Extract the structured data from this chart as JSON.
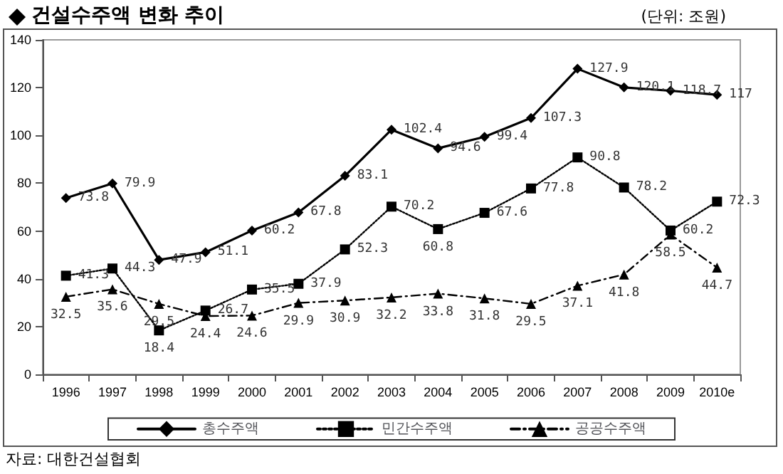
{
  "chart_data": {
    "type": "line",
    "title": "건설수주액 변화 추이",
    "annotations": [
      "(단위: 조원)",
      "자료: 대한건설협회"
    ],
    "categories": [
      "1996",
      "1997",
      "1998",
      "1999",
      "2000",
      "2001",
      "2002",
      "2003",
      "2004",
      "2005",
      "2006",
      "2007",
      "2008",
      "2009",
      "2010e"
    ],
    "series": [
      {
        "name": "총수주액",
        "color": "#000000",
        "marker": "diamond",
        "line_style": "solid",
        "values": [
          73.8,
          79.9,
          47.9,
          51.1,
          60.2,
          67.8,
          83.1,
          102.4,
          94.6,
          99.4,
          107.3,
          127.9,
          120.1,
          118.7,
          117
        ]
      },
      {
        "name": "민간수주액",
        "color": "#000000",
        "marker": "square",
        "line_style": "dotted",
        "values": [
          41.3,
          44.3,
          18.4,
          26.7,
          35.5,
          37.9,
          52.3,
          70.2,
          60.8,
          67.6,
          77.8,
          90.8,
          78.2,
          60.2,
          72.3
        ]
      },
      {
        "name": "공공수주액",
        "color": "#000000",
        "marker": "triangle",
        "line_style": "dashed",
        "values": [
          32.5,
          35.6,
          29.5,
          24.4,
          24.6,
          29.9,
          30.9,
          32.2,
          33.8,
          31.8,
          29.5,
          37.1,
          41.8,
          58.5,
          44.7
        ]
      }
    ],
    "ylim": [
      0,
      140
    ],
    "yticks": [
      0,
      20,
      40,
      60,
      80,
      100,
      120,
      140
    ],
    "grid": false,
    "legend": "bottom",
    "data_labels": true
  }
}
